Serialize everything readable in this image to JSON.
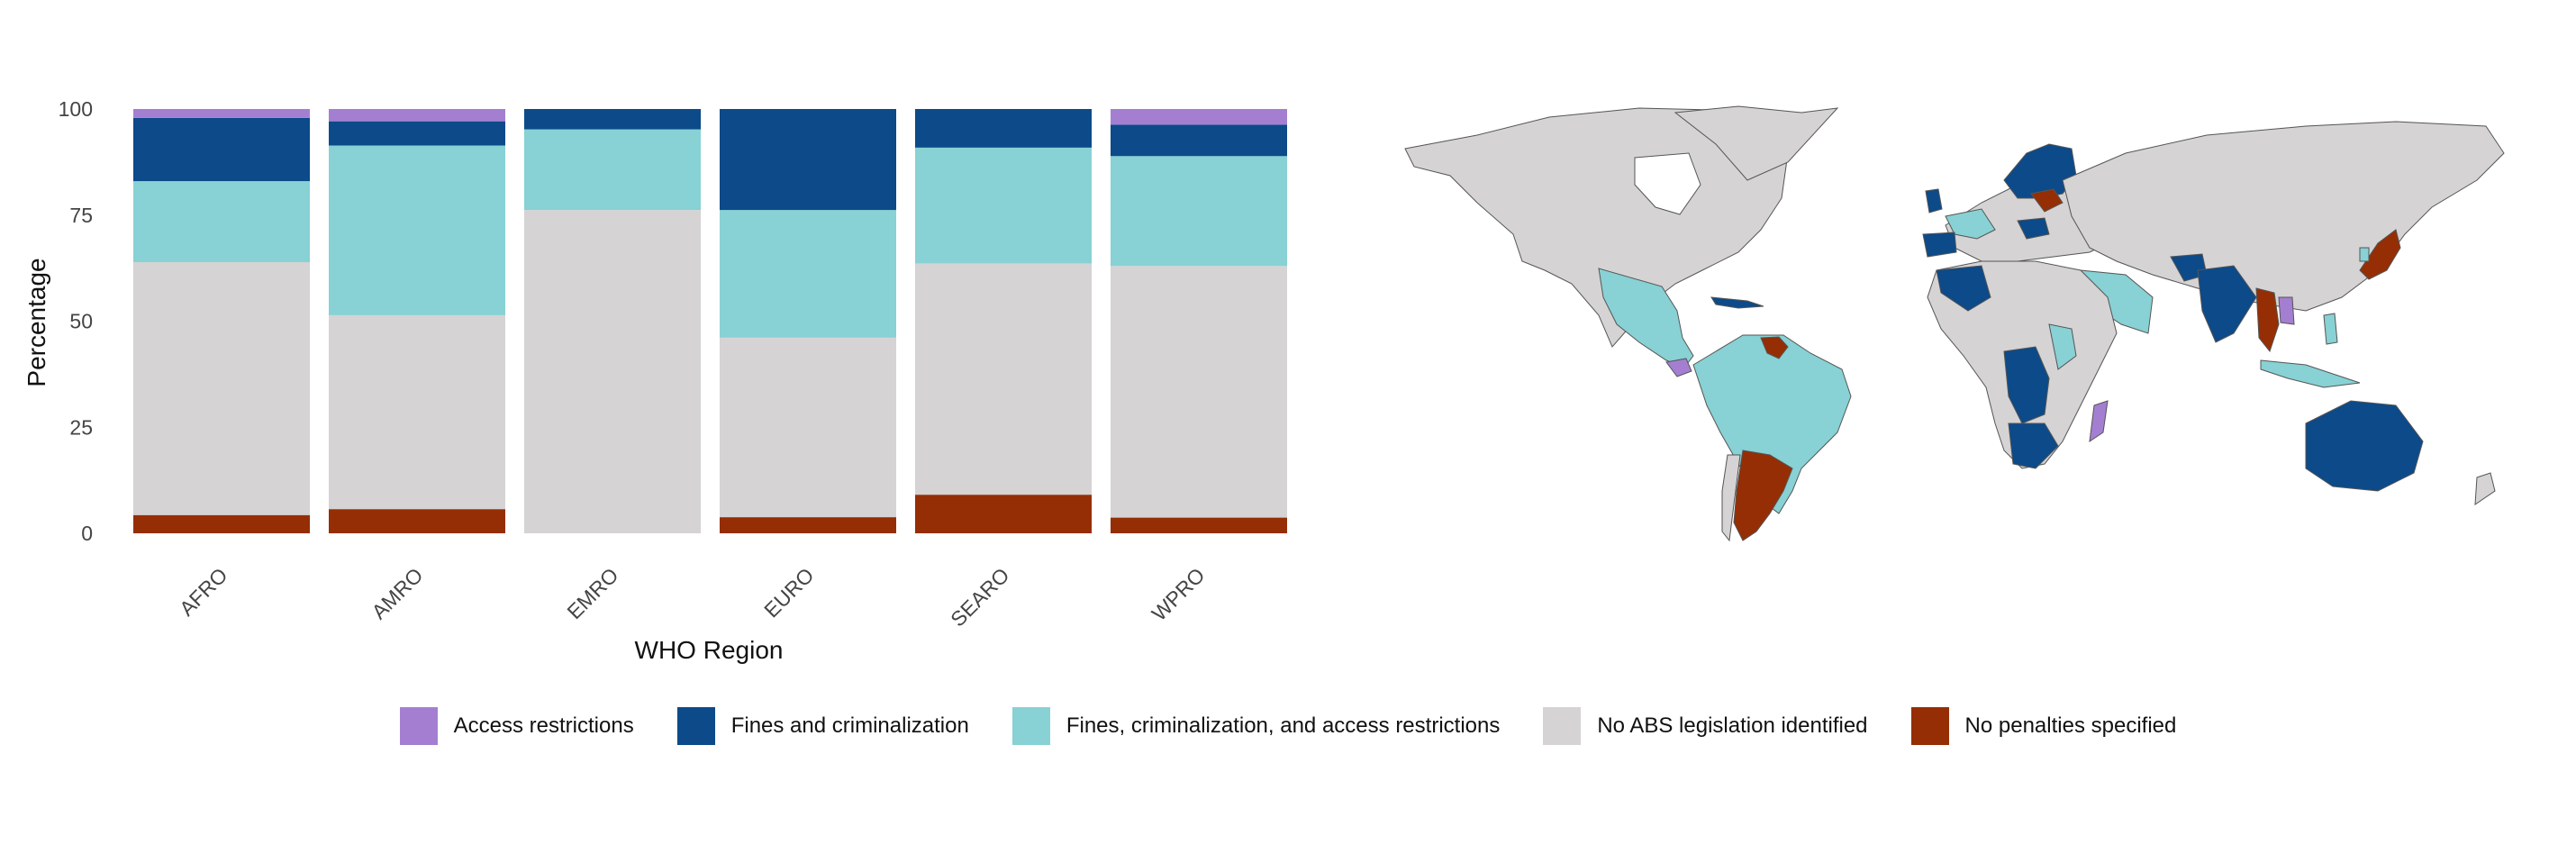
{
  "chart_data": {
    "type": "bar",
    "stacked": true,
    "xlabel": "WHO Region",
    "ylabel": "Percentage",
    "ylim": [
      0,
      100
    ],
    "yticks": [
      0,
      25,
      50,
      75,
      100
    ],
    "categories": [
      "AFRO",
      "AMRO",
      "EMRO",
      "EURO",
      "SEARO",
      "WPRO"
    ],
    "grid": false,
    "legend_position": "bottom",
    "series": [
      {
        "name": "No penalties specified",
        "color": "#952E04",
        "values": [
          4.3,
          5.7,
          0,
          3.8,
          9.1,
          3.7
        ]
      },
      {
        "name": "No ABS legislation identified",
        "color": "#D5D3D4",
        "values": [
          59.6,
          45.7,
          76.2,
          42.3,
          54.5,
          59.3
        ]
      },
      {
        "name": "Fines, criminalization, and access restrictions",
        "color": "#88D1D4",
        "values": [
          19.1,
          40.0,
          19.0,
          30.1,
          27.3,
          25.9
        ]
      },
      {
        "name": "Fines and criminalization",
        "color": "#0C4A89",
        "values": [
          14.9,
          5.7,
          4.8,
          23.8,
          9.1,
          7.4
        ]
      },
      {
        "name": "Access restrictions",
        "color": "#A47FD1",
        "values": [
          2.1,
          2.9,
          0,
          0,
          0,
          3.7
        ]
      }
    ]
  },
  "legend": {
    "items": [
      {
        "label": "Access restrictions",
        "color": "#A47FD1"
      },
      {
        "label": "Fines and criminalization",
        "color": "#0C4A89"
      },
      {
        "label": "Fines, criminalization, and access restrictions",
        "color": "#88D1D4"
      },
      {
        "label": "No ABS legislation identified",
        "color": "#D5D3D4"
      },
      {
        "label": "No penalties specified",
        "color": "#952E04"
      }
    ]
  },
  "map": {
    "land_color": "#D5D3D4",
    "border_color": "#555555"
  }
}
